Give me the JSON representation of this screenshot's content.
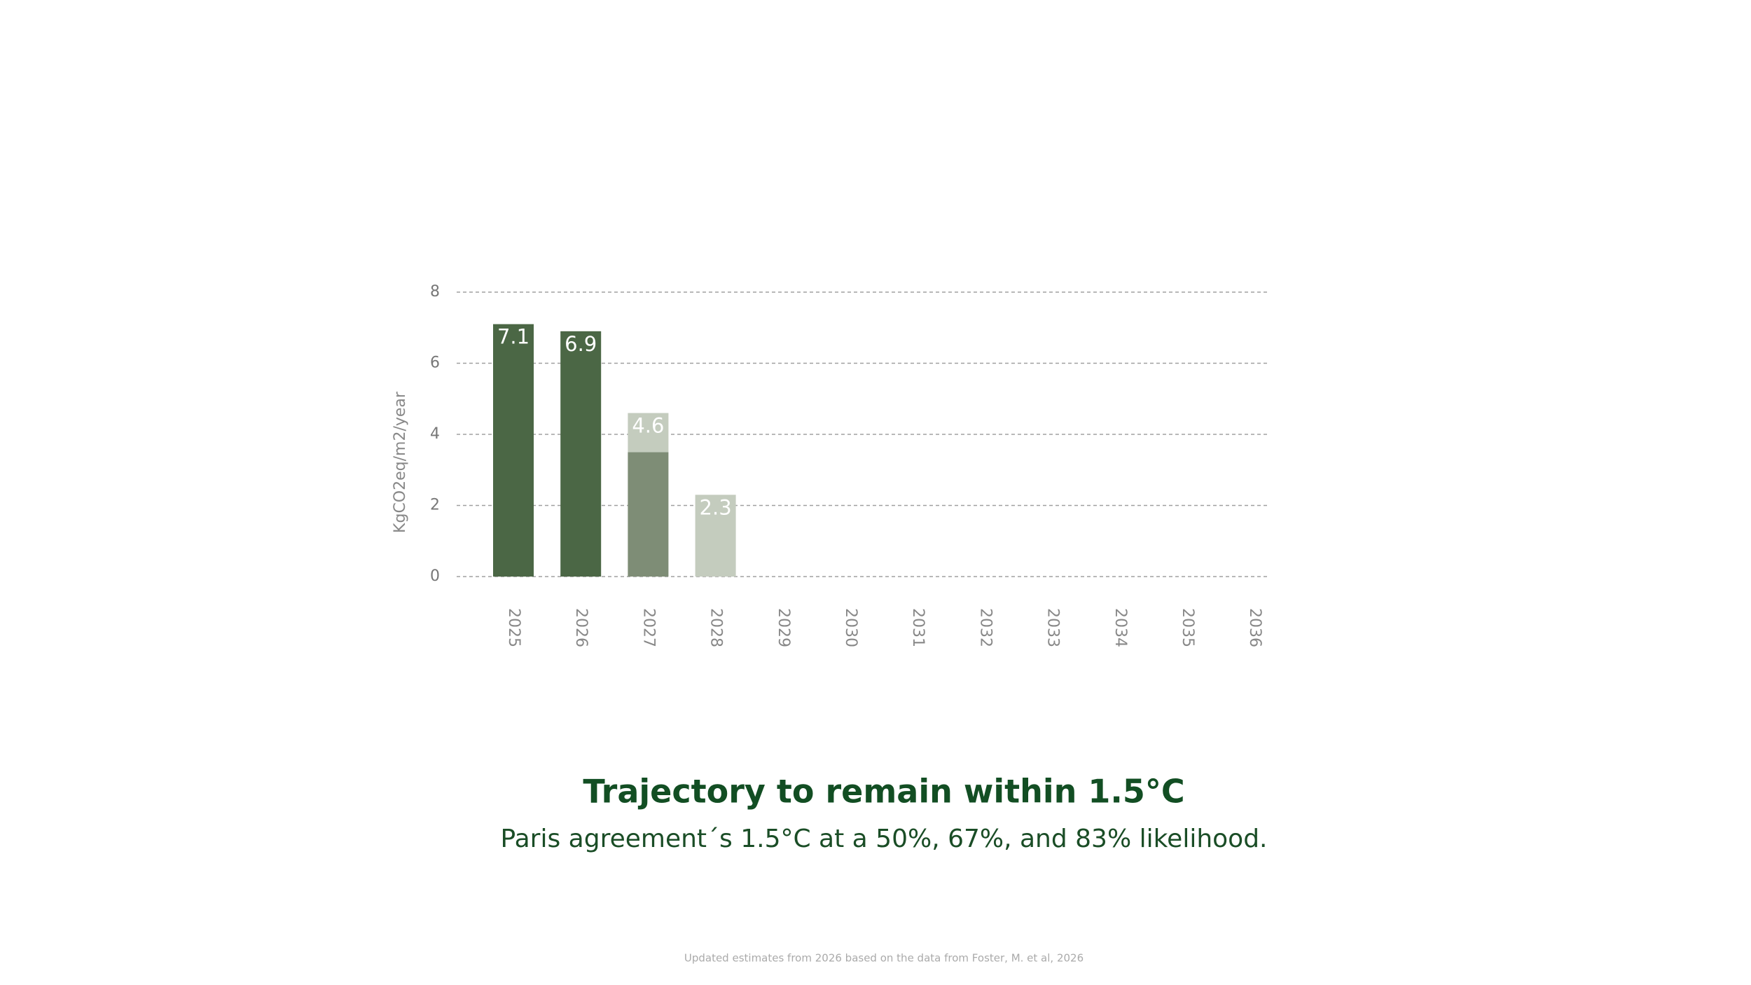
{
  "chart_data": {
    "type": "bar",
    "stacked": true,
    "title": "Trajectory to remain within 1.5°C",
    "subtitle": "Paris agreement´s 1.5°C at a 50%, 67%, and 83% likelihood.",
    "footnote": "Updated estimates from 2026 based on the data from Foster, M. et al, 2026",
    "y_label": "KgCO2eq/m2/year",
    "categories": [
      "2025",
      "2026",
      "2027",
      "2028",
      "2029",
      "2030",
      "2031",
      "2032",
      "2033",
      "2034",
      "2035",
      "2036"
    ],
    "series": [
      {
        "color": "#4b6745",
        "values": [
          7.1,
          6.9,
          null,
          null,
          null,
          null,
          null,
          null,
          null,
          null,
          null,
          null
        ]
      },
      {
        "color": "#7e8d76",
        "values": [
          null,
          null,
          3.5,
          null,
          null,
          null,
          null,
          null,
          null,
          null,
          null,
          null
        ]
      },
      {
        "color": "#c4ccbe",
        "values": [
          null,
          null,
          1.1,
          2.3,
          null,
          null,
          null,
          null,
          null,
          null,
          null,
          null
        ]
      }
    ],
    "totals": [
      7.1,
      6.9,
      4.6,
      2.3,
      null,
      null,
      null,
      null,
      null,
      null,
      null,
      null
    ],
    "ylim": [
      0,
      8
    ],
    "yticks": [
      0,
      2,
      4,
      6,
      8
    ],
    "grid": true
  }
}
